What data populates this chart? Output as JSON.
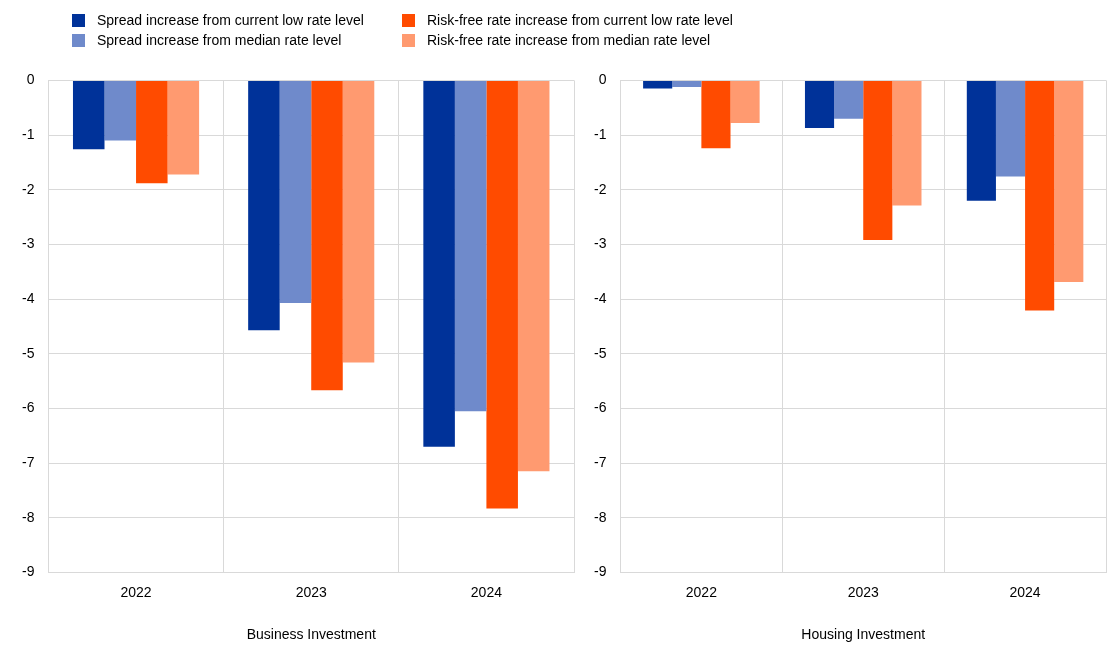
{
  "chart_data": [
    {
      "type": "bar",
      "xlabel": "Business Investment",
      "categories": [
        "2022",
        "2023",
        "2024"
      ],
      "ylim": [
        -9,
        0
      ],
      "yticks": [
        -9,
        -8,
        -7,
        -6,
        -5,
        -4,
        -3,
        -2,
        -1,
        0
      ],
      "grid": true,
      "legend": "top",
      "series": [
        {
          "name": "Spread increase from current low rate level",
          "color": "#003299",
          "values": [
            -1.26,
            -4.57,
            -6.7
          ]
        },
        {
          "name": "Spread increase from median rate level",
          "color": "#6f8acb",
          "values": [
            -1.1,
            -4.07,
            -6.05
          ]
        },
        {
          "name": "Risk-free rate increase from current low rate level",
          "color": "#ff4b00",
          "values": [
            -1.88,
            -5.67,
            -7.83
          ]
        },
        {
          "name": "Risk-free rate increase from median rate level",
          "color": "#ff9a70",
          "values": [
            -1.72,
            -5.16,
            -7.15
          ]
        }
      ]
    },
    {
      "type": "bar",
      "xlabel": "Housing Investment",
      "categories": [
        "2022",
        "2023",
        "2024"
      ],
      "ylim": [
        -9,
        0
      ],
      "yticks": [
        -9,
        -8,
        -7,
        -6,
        -5,
        -4,
        -3,
        -2,
        -1,
        0
      ],
      "grid": true,
      "series": [
        {
          "color": "#003299",
          "values": [
            -0.15,
            -0.87,
            -2.2
          ]
        },
        {
          "color": "#6f8acb",
          "values": [
            -0.12,
            -0.7,
            -1.76
          ]
        },
        {
          "color": "#ff4b00",
          "values": [
            -1.24,
            -2.92,
            -4.21
          ]
        },
        {
          "color": "#ff9a70",
          "values": [
            -0.78,
            -2.29,
            -3.69
          ]
        }
      ]
    }
  ]
}
